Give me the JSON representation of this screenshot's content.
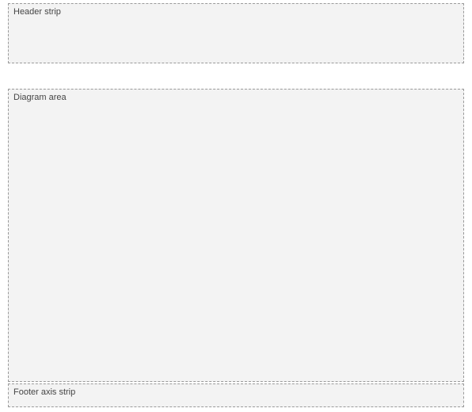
{
  "header": {
    "caption": "Header strip"
  },
  "diagram": {
    "caption": "Diagram area"
  },
  "footer": {
    "caption": "Footer axis strip"
  }
}
